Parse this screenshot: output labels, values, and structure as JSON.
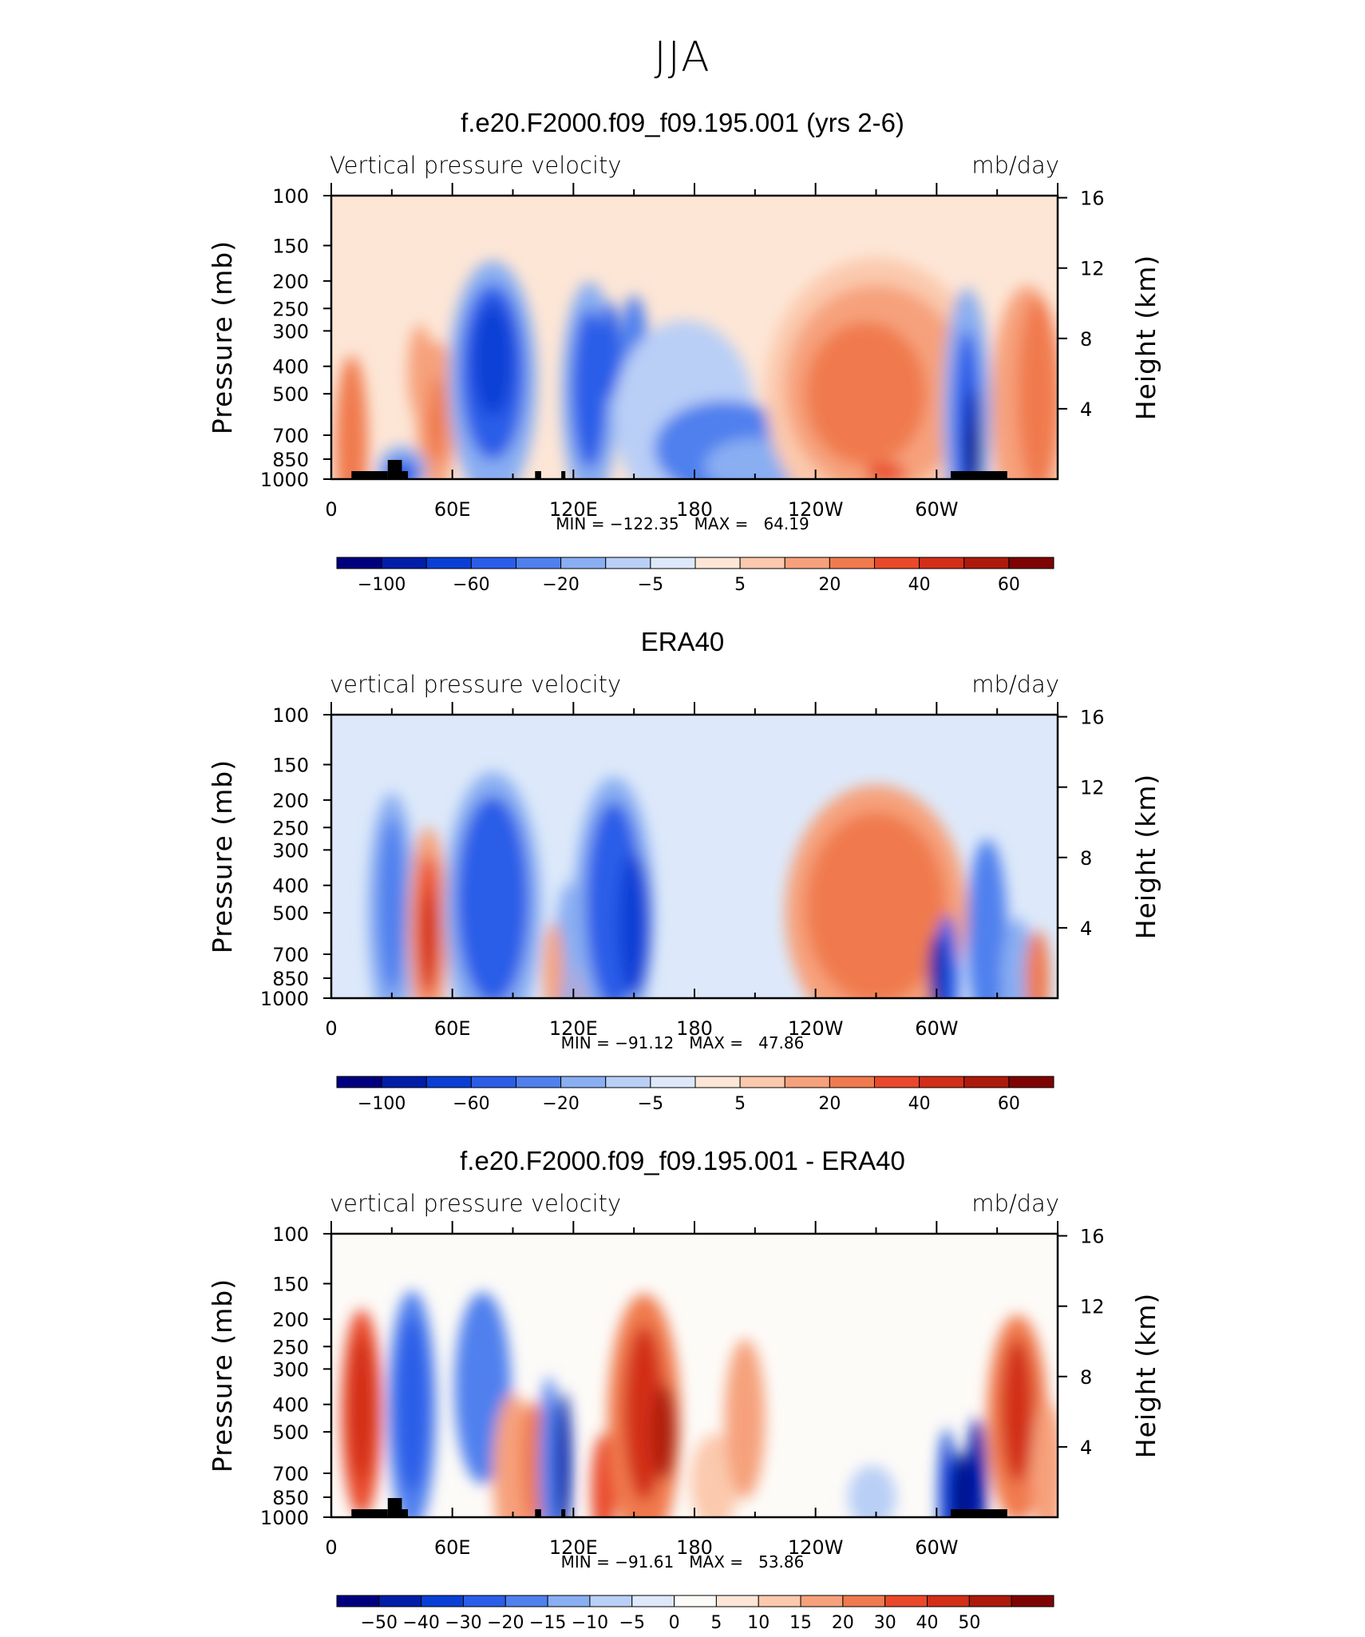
{
  "page_title": "JJA",
  "colors": {
    "scale_12": [
      "#00007f",
      "#001ea8",
      "#0a3fd6",
      "#2a5de8",
      "#4f80ee",
      "#89aef2",
      "#b9cff6",
      "#dde9fa",
      "#fde6d6",
      "#fbc9ad",
      "#f6a17c",
      "#f07a4e",
      "#e9492a",
      "#d22e18",
      "#ad1a0c",
      "#7e0303"
    ],
    "scale_diff": [
      "#00007f",
      "#001ea8",
      "#0a3fd6",
      "#2a5de8",
      "#4f80ee",
      "#89aef2",
      "#b9cff6",
      "#dde9fa",
      "#fdfbf8",
      "#fde6d6",
      "#fbc9ad",
      "#f6a17c",
      "#f07a4e",
      "#e9492a",
      "#d22e18",
      "#ad1a0c",
      "#7e0303"
    ]
  },
  "panels": [
    {
      "title": "f.e20.F2000.f09_f09.195.001 (yrs 2-6)",
      "left_label": "Vertical pressure velocity",
      "right_label": "mb/day",
      "ylabel": "Pressure (mb)",
      "ylabel_right": "Height (km)",
      "minmax": "MIN = −122.35   MAX =   64.19",
      "colorbar_labels": [
        "−100",
        "−60",
        "−20",
        "−5",
        "5",
        "20",
        "40",
        "60"
      ]
    },
    {
      "title": "ERA40",
      "left_label": "vertical pressure velocity",
      "right_label": "mb/day",
      "ylabel": "Pressure (mb)",
      "ylabel_right": "Height (km)",
      "minmax": "MIN = −91.12   MAX =   47.86",
      "colorbar_labels": [
        "−100",
        "−60",
        "−20",
        "−5",
        "5",
        "20",
        "40",
        "60"
      ]
    },
    {
      "title": "f.e20.F2000.f09_f09.195.001 - ERA40",
      "left_label": "vertical pressure velocity",
      "right_label": "mb/day",
      "ylabel": "Pressure (mb)",
      "ylabel_right": "Height (km)",
      "minmax": "MIN = −91.61   MAX =   53.86",
      "colorbar_labels": [
        "−50",
        "−40",
        "−30",
        "−20",
        "−15",
        "−10",
        "−5",
        "0",
        "5",
        "10",
        "15",
        "20",
        "30",
        "40",
        "50"
      ]
    }
  ],
  "chart_data": [
    {
      "type": "heatmap",
      "title": "f.e20.F2000.f09_f09.195.001 (yrs 2-6)",
      "variable": "Vertical pressure velocity",
      "units": "mb/day",
      "x_ticks": [
        "0",
        "60E",
        "120E",
        "180",
        "120W",
        "60W"
      ],
      "y_ticks": [
        100,
        150,
        200,
        250,
        300,
        400,
        500,
        700,
        850,
        1000
      ],
      "y2_ticks": [
        16,
        12,
        8,
        4
      ],
      "ylabel": "Pressure (mb)",
      "ylabel_right": "Height (km)",
      "min": -122.35,
      "max": 64.19,
      "contour_levels": [
        -100,
        -60,
        -20,
        -5,
        5,
        20,
        40,
        60
      ]
    },
    {
      "type": "heatmap",
      "title": "ERA40",
      "variable": "vertical pressure velocity",
      "units": "mb/day",
      "x_ticks": [
        "0",
        "60E",
        "120E",
        "180",
        "120W",
        "60W"
      ],
      "y_ticks": [
        100,
        150,
        200,
        250,
        300,
        400,
        500,
        700,
        850,
        1000
      ],
      "y2_ticks": [
        16,
        12,
        8,
        4
      ],
      "ylabel": "Pressure (mb)",
      "ylabel_right": "Height (km)",
      "min": -91.12,
      "max": 47.86,
      "contour_levels": [
        -100,
        -60,
        -20,
        -5,
        5,
        20,
        40,
        60
      ]
    },
    {
      "type": "heatmap",
      "title": "f.e20.F2000.f09_f09.195.001 - ERA40",
      "variable": "vertical pressure velocity",
      "units": "mb/day",
      "x_ticks": [
        "0",
        "60E",
        "120E",
        "180",
        "120W",
        "60W"
      ],
      "y_ticks": [
        100,
        150,
        200,
        250,
        300,
        400,
        500,
        700,
        850,
        1000
      ],
      "y2_ticks": [
        16,
        12,
        8,
        4
      ],
      "ylabel": "Pressure (mb)",
      "ylabel_right": "Height (km)",
      "min": -91.61,
      "max": 53.86,
      "contour_levels": [
        -50,
        -40,
        -30,
        -20,
        -15,
        -10,
        -5,
        0,
        5,
        10,
        15,
        20,
        30,
        40,
        50
      ]
    }
  ]
}
